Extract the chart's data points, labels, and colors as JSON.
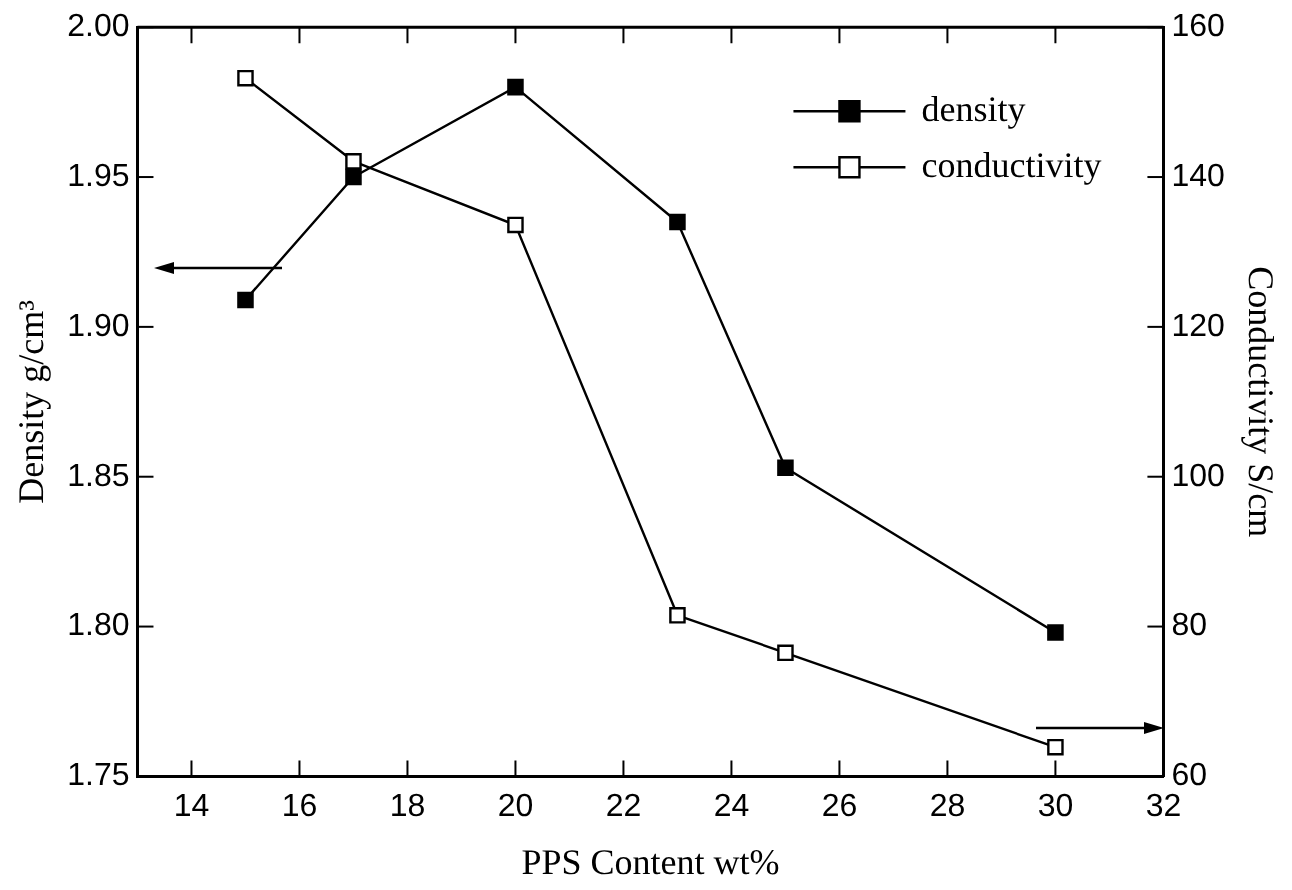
{
  "chart_data": {
    "type": "line",
    "xlabel": "PPS Content wt%",
    "ylabel": "Density g/cm³",
    "y2label": "Conductivity S/cm",
    "x": [
      15,
      17,
      20,
      23,
      25,
      30
    ],
    "series": [
      {
        "name": "density",
        "color": "#000000",
        "values": [
          1.909,
          1.95,
          1.98,
          1.935,
          1.853,
          1.798
        ],
        "marker": "square"
      },
      {
        "name": "conductivity",
        "color": "#000000",
        "values": [
          153.2,
          142.1,
          133.6,
          81.5,
          76.5,
          63.9
        ],
        "axis": "y2",
        "marker": "square"
      }
    ],
    "xlim": [
      13,
      32
    ],
    "xticks": [
      14,
      16,
      18,
      20,
      22,
      24,
      26,
      28,
      30,
      32
    ],
    "ylim": [
      1.75,
      2.0
    ],
    "yticks": [
      {
        "value": 1.75,
        "label": "1.75"
      },
      {
        "value": 1.8,
        "label": "1.80"
      },
      {
        "value": 1.85,
        "label": "1.85"
      },
      {
        "value": 1.9,
        "label": "1.90"
      },
      {
        "value": 1.95,
        "label": "1.95"
      },
      {
        "value": 2.0,
        "label": "2.00"
      }
    ],
    "y2lim": [
      60,
      160
    ],
    "y2ticks": [
      60,
      80,
      100,
      120,
      140,
      160
    ],
    "grid": false,
    "legend": "top right",
    "line_style": "solid"
  }
}
